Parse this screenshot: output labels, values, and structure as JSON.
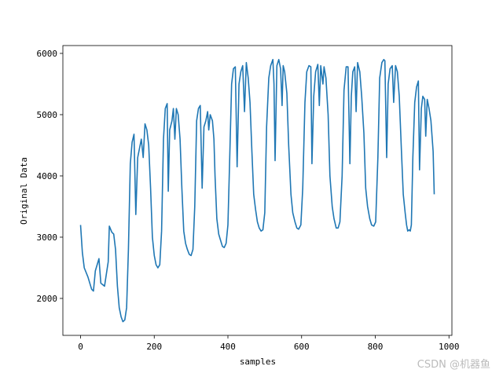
{
  "chart_data": {
    "type": "line",
    "xlabel": "samples",
    "ylabel": "Original Data",
    "color": "#1f77b4",
    "annotation": "CSDN @机器鱼",
    "x": [
      0,
      5,
      10,
      20,
      30,
      35,
      40,
      50,
      55,
      65,
      75,
      78,
      85,
      90,
      95,
      100,
      105,
      110,
      115,
      120,
      125,
      130,
      135,
      140,
      145,
      150,
      155,
      160,
      165,
      170,
      175,
      180,
      185,
      190,
      195,
      200,
      205,
      210,
      215,
      220,
      225,
      230,
      235,
      238,
      242,
      248,
      252,
      256,
      260,
      265,
      270,
      275,
      280,
      285,
      290,
      295,
      300,
      305,
      310,
      315,
      320,
      325,
      330,
      335,
      340,
      345,
      348,
      352,
      358,
      362,
      365,
      370,
      375,
      380,
      385,
      390,
      395,
      400,
      405,
      410,
      415,
      420,
      425,
      430,
      435,
      440,
      445,
      450,
      455,
      460,
      465,
      470,
      475,
      480,
      485,
      490,
      495,
      500,
      505,
      511,
      516,
      522,
      525,
      528,
      533,
      538,
      543,
      547,
      550,
      554,
      560,
      565,
      571,
      576,
      582,
      587,
      592,
      598,
      603,
      609,
      614,
      620,
      625,
      628,
      633,
      638,
      644,
      648,
      652,
      658,
      661,
      666,
      672,
      677,
      683,
      688,
      694,
      699,
      704,
      710,
      715,
      721,
      726,
      731,
      735,
      739,
      744,
      748,
      752,
      758,
      763,
      769,
      774,
      779,
      785,
      790,
      796,
      801,
      807,
      812,
      818,
      823,
      826,
      831,
      835,
      840,
      846,
      850,
      855,
      860,
      865,
      871,
      876,
      881,
      885,
      888,
      892,
      895,
      898,
      902,
      907,
      912,
      917,
      920,
      925,
      929,
      934,
      937,
      941,
      946,
      951,
      957,
      960
    ],
    "values": [
      3200,
      2750,
      2500,
      2350,
      2150,
      2120,
      2450,
      2650,
      2250,
      2200,
      2600,
      3180,
      3080,
      3050,
      2800,
      2200,
      1850,
      1700,
      1620,
      1650,
      1850,
      2800,
      4200,
      4550,
      4680,
      3370,
      4300,
      4450,
      4600,
      4300,
      4850,
      4750,
      4500,
      3800,
      3000,
      2700,
      2550,
      2500,
      2550,
      3100,
      4600,
      5100,
      5180,
      3750,
      4750,
      4900,
      5100,
      4600,
      5100,
      5000,
      4600,
      3800,
      3100,
      2900,
      2800,
      2720,
      2700,
      2800,
      3500,
      4900,
      5100,
      5150,
      3800,
      4800,
      4900,
      5050,
      4750,
      5000,
      4900,
      4600,
      4000,
      3300,
      3050,
      2950,
      2850,
      2830,
      2900,
      3200,
      4300,
      5500,
      5750,
      5780,
      4150,
      5500,
      5700,
      5800,
      5050,
      5850,
      5600,
      5200,
      4400,
      3700,
      3450,
      3250,
      3150,
      3100,
      3120,
      3400,
      4800,
      5600,
      5800,
      5900,
      5500,
      4250,
      5800,
      5900,
      5750,
      5150,
      5800,
      5700,
      5350,
      4500,
      3700,
      3400,
      3250,
      3150,
      3130,
      3200,
      3800,
      5200,
      5700,
      5800,
      5780,
      4200,
      5300,
      5700,
      5820,
      5150,
      5800,
      5500,
      5780,
      5600,
      5000,
      4000,
      3500,
      3300,
      3150,
      3150,
      3250,
      4000,
      5400,
      5780,
      5780,
      4200,
      5300,
      5700,
      5780,
      5050,
      5850,
      5700,
      5300,
      4700,
      3800,
      3500,
      3300,
      3200,
      3180,
      3250,
      4300,
      5600,
      5850,
      5900,
      5880,
      4300,
      5500,
      5750,
      5800,
      5200,
      5800,
      5700,
      5300,
      4400,
      3700,
      3400,
      3200,
      3100,
      3120,
      3100,
      3200,
      4300,
      5200,
      5450,
      5550,
      4100,
      5100,
      5300,
      5250,
      4650,
      5250,
      5100,
      4900,
      4400,
      3700
    ],
    "xlim": [
      -48,
      1008
    ],
    "ylim": [
      1397,
      6128
    ],
    "xticks": [
      0,
      200,
      400,
      600,
      800,
      1000
    ],
    "yticks": [
      2000,
      3000,
      4000,
      5000,
      6000
    ]
  }
}
